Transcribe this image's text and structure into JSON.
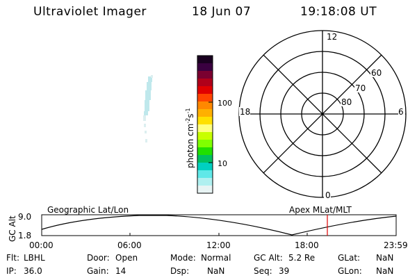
{
  "header": {
    "title": "Ultraviolet Imager",
    "date": "18 Jun 07",
    "time": "19:18:08 UT"
  },
  "colorbar": {
    "unit_label": "photon cm",
    "unit_sup1": "-2",
    "unit_s": "s",
    "unit_sup2": "-1",
    "tick_100": "100",
    "tick_10": "10",
    "colors": [
      "#1a0020",
      "#3a0040",
      "#7a0030",
      "#b0001a",
      "#e00000",
      "#ff4400",
      "#ff8800",
      "#ffb000",
      "#ffe000",
      "#ffff80",
      "#c8ff00",
      "#80ff00",
      "#20e000",
      "#00c060",
      "#00d0c0",
      "#60e8e8",
      "#b0f0f0",
      "#e8f4f4"
    ]
  },
  "polar": {
    "label_top": "12",
    "label_bottom": "0",
    "label_left": "18",
    "label_right": "6",
    "lat_60": "60",
    "lat_70": "70",
    "lat_80": "80"
  },
  "orbit": {
    "left_title": "Geographic Lat/Lon",
    "right_title": "Apex MLat/MLT",
    "axis_label": "GC Alt",
    "y_top": "9.0",
    "y_bottom": "1.8",
    "x_ticks": [
      "00:00",
      "06:00",
      "12:00",
      "18:00",
      "23:59"
    ],
    "marker_color": "#e00000"
  },
  "info": {
    "flt_label": "Flt:",
    "flt_value": "LBHL",
    "ip_label": "IP:",
    "ip_value": "36.0",
    "door_label": "Door:",
    "door_value": "Open",
    "gain_label": "Gain:",
    "gain_value": "14",
    "mode_label": "Mode:",
    "mode_value": "Normal",
    "dsp_label": "Dsp:",
    "dsp_value": "NaN",
    "gcalt_label": "GC Alt:",
    "gcalt_value": "5.2 Re",
    "seq_label": "Seq:",
    "seq_value": "39",
    "glat_label": "GLat:",
    "glat_value": "NaN",
    "glon_label": "GLon:",
    "glon_value": "NaN"
  }
}
